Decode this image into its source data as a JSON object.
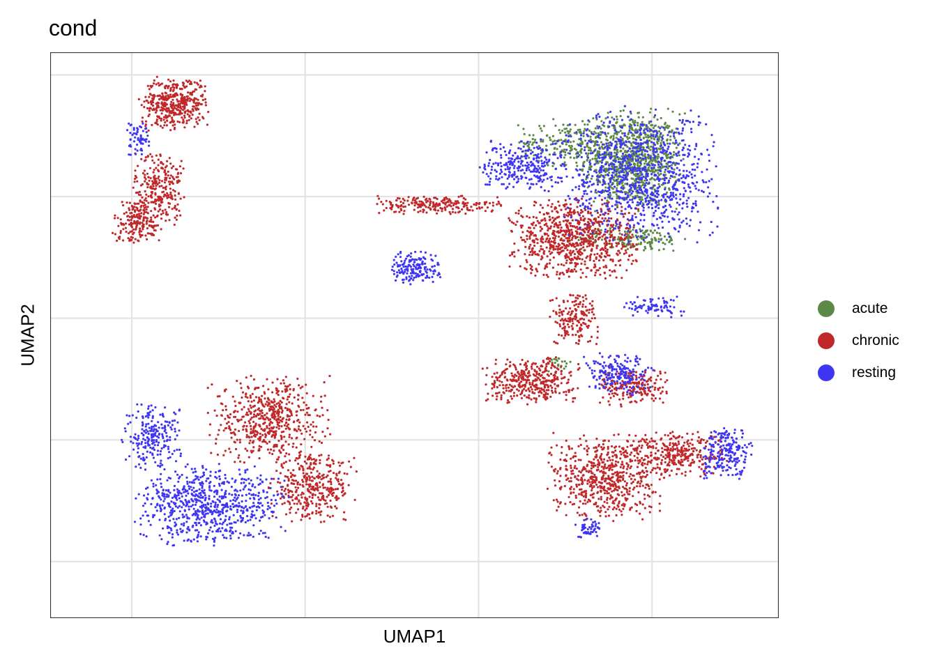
{
  "chart_data": {
    "type": "scatter",
    "title": "cond",
    "xlabel": "UMAP1",
    "ylabel": "UMAP2",
    "xlim": [
      0,
      100
    ],
    "ylim": [
      0,
      100
    ],
    "grid": true,
    "tick_labels_shown": false,
    "legend_position": "right",
    "series": [
      {
        "name": "acute",
        "color": "#5c8a46",
        "clusters": [
          {
            "cx": 80,
            "cy": 81,
            "rx": 6,
            "ry": 7.5,
            "n": 900
          },
          {
            "cx": 80,
            "cy": 67,
            "rx": 7,
            "ry": 2,
            "n": 170
          },
          {
            "cx": 71,
            "cy": 84,
            "rx": 6,
            "ry": 3.5,
            "n": 190
          },
          {
            "cx": 70,
            "cy": 45,
            "rx": 1.5,
            "ry": 1.2,
            "n": 20
          }
        ]
      },
      {
        "name": "chronic",
        "color": "#c0282a",
        "clusters": [
          {
            "cx": 17,
            "cy": 91,
            "rx": 4,
            "ry": 4,
            "n": 420
          },
          {
            "cx": 15,
            "cy": 76,
            "rx": 3,
            "ry": 6,
            "n": 260
          },
          {
            "cx": 12,
            "cy": 70,
            "rx": 3,
            "ry": 3.5,
            "n": 180
          },
          {
            "cx": 30,
            "cy": 35,
            "rx": 7,
            "ry": 6.5,
            "n": 560
          },
          {
            "cx": 36,
            "cy": 23,
            "rx": 5,
            "ry": 5,
            "n": 360
          },
          {
            "cx": 72,
            "cy": 67,
            "rx": 7.5,
            "ry": 6,
            "n": 820
          },
          {
            "cx": 53,
            "cy": 73,
            "rx": 8,
            "ry": 1.4,
            "n": 220
          },
          {
            "cx": 72,
            "cy": 53,
            "rx": 3,
            "ry": 4,
            "n": 170
          },
          {
            "cx": 66,
            "cy": 42,
            "rx": 5.5,
            "ry": 3.5,
            "n": 380
          },
          {
            "cx": 80,
            "cy": 41,
            "rx": 4,
            "ry": 3,
            "n": 200
          },
          {
            "cx": 76,
            "cy": 25,
            "rx": 6.5,
            "ry": 6.5,
            "n": 620
          },
          {
            "cx": 86,
            "cy": 29,
            "rx": 6,
            "ry": 3.5,
            "n": 310
          }
        ]
      },
      {
        "name": "resting",
        "color": "#3e36f2",
        "clusters": [
          {
            "cx": 81,
            "cy": 78,
            "rx": 9,
            "ry": 10,
            "n": 950
          },
          {
            "cx": 65,
            "cy": 80,
            "rx": 5,
            "ry": 4,
            "n": 280
          },
          {
            "cx": 50,
            "cy": 62,
            "rx": 3,
            "ry": 2.5,
            "n": 170
          },
          {
            "cx": 83,
            "cy": 55,
            "rx": 3.5,
            "ry": 1.5,
            "n": 80
          },
          {
            "cx": 22,
            "cy": 20,
            "rx": 9,
            "ry": 6,
            "n": 720
          },
          {
            "cx": 14,
            "cy": 32,
            "rx": 3.5,
            "ry": 5,
            "n": 220
          },
          {
            "cx": 78,
            "cy": 43,
            "rx": 4,
            "ry": 3,
            "n": 190
          },
          {
            "cx": 93,
            "cy": 29,
            "rx": 3,
            "ry": 4,
            "n": 210
          },
          {
            "cx": 12,
            "cy": 85,
            "rx": 1.5,
            "ry": 3,
            "n": 60
          },
          {
            "cx": 74,
            "cy": 16,
            "rx": 2,
            "ry": 1.5,
            "n": 50
          }
        ]
      }
    ]
  }
}
